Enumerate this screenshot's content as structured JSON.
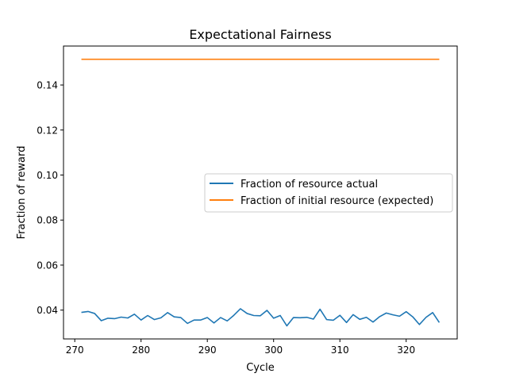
{
  "chart_data": {
    "type": "line",
    "title": "Expectational Fairness",
    "xlabel": "Cycle",
    "ylabel": "Fraction of reward",
    "xlim": [
      268.3,
      327.7
    ],
    "ylim": [
      0.0272,
      0.1573
    ],
    "xticks": [
      270,
      280,
      290,
      300,
      310,
      320
    ],
    "yticks": [
      0.04,
      0.06,
      0.08,
      0.1,
      0.12,
      0.14
    ],
    "ytick_labels": [
      "0.04",
      "0.06",
      "0.08",
      "0.10",
      "0.12",
      "0.14"
    ],
    "grid": false,
    "legend_position": "center-right",
    "x": [
      271,
      272,
      273,
      274,
      275,
      276,
      277,
      278,
      279,
      280,
      281,
      282,
      283,
      284,
      285,
      286,
      287,
      288,
      289,
      290,
      291,
      292,
      293,
      294,
      295,
      296,
      297,
      298,
      299,
      300,
      301,
      302,
      303,
      304,
      305,
      306,
      307,
      308,
      309,
      310,
      311,
      312,
      313,
      314,
      315,
      316,
      317,
      318,
      319,
      320,
      321,
      322,
      323,
      324,
      325
    ],
    "series": [
      {
        "name": "Fraction of resource actual",
        "color": "#1f77b4",
        "values": [
          0.039,
          0.0394,
          0.0385,
          0.0353,
          0.0364,
          0.0362,
          0.0369,
          0.0365,
          0.0382,
          0.0356,
          0.0376,
          0.0358,
          0.0366,
          0.0389,
          0.037,
          0.0367,
          0.0341,
          0.0356,
          0.0356,
          0.0367,
          0.0343,
          0.0367,
          0.0352,
          0.0377,
          0.0406,
          0.0385,
          0.0376,
          0.0375,
          0.0399,
          0.0364,
          0.0376,
          0.033,
          0.0367,
          0.0366,
          0.0368,
          0.036,
          0.0404,
          0.0358,
          0.0355,
          0.0377,
          0.0345,
          0.038,
          0.0359,
          0.0368,
          0.0347,
          0.0371,
          0.0387,
          0.0379,
          0.0373,
          0.0393,
          0.037,
          0.0336,
          0.0368,
          0.0389,
          0.0345
        ]
      },
      {
        "name": "Fraction of initial resource (expected)",
        "color": "#ff7f0e",
        "values": [
          0.1514,
          0.1514,
          0.1514,
          0.1514,
          0.1514,
          0.1514,
          0.1514,
          0.1514,
          0.1514,
          0.1514,
          0.1514,
          0.1514,
          0.1514,
          0.1514,
          0.1514,
          0.1514,
          0.1514,
          0.1514,
          0.1514,
          0.1514,
          0.1514,
          0.1514,
          0.1514,
          0.1514,
          0.1514,
          0.1514,
          0.1514,
          0.1514,
          0.1514,
          0.1514,
          0.1514,
          0.1514,
          0.1514,
          0.1514,
          0.1514,
          0.1514,
          0.1514,
          0.1514,
          0.1514,
          0.1514,
          0.1514,
          0.1514,
          0.1514,
          0.1514,
          0.1514,
          0.1514,
          0.1514,
          0.1514,
          0.1514,
          0.1514,
          0.1514,
          0.1514,
          0.1514,
          0.1514,
          0.1514
        ]
      }
    ]
  }
}
